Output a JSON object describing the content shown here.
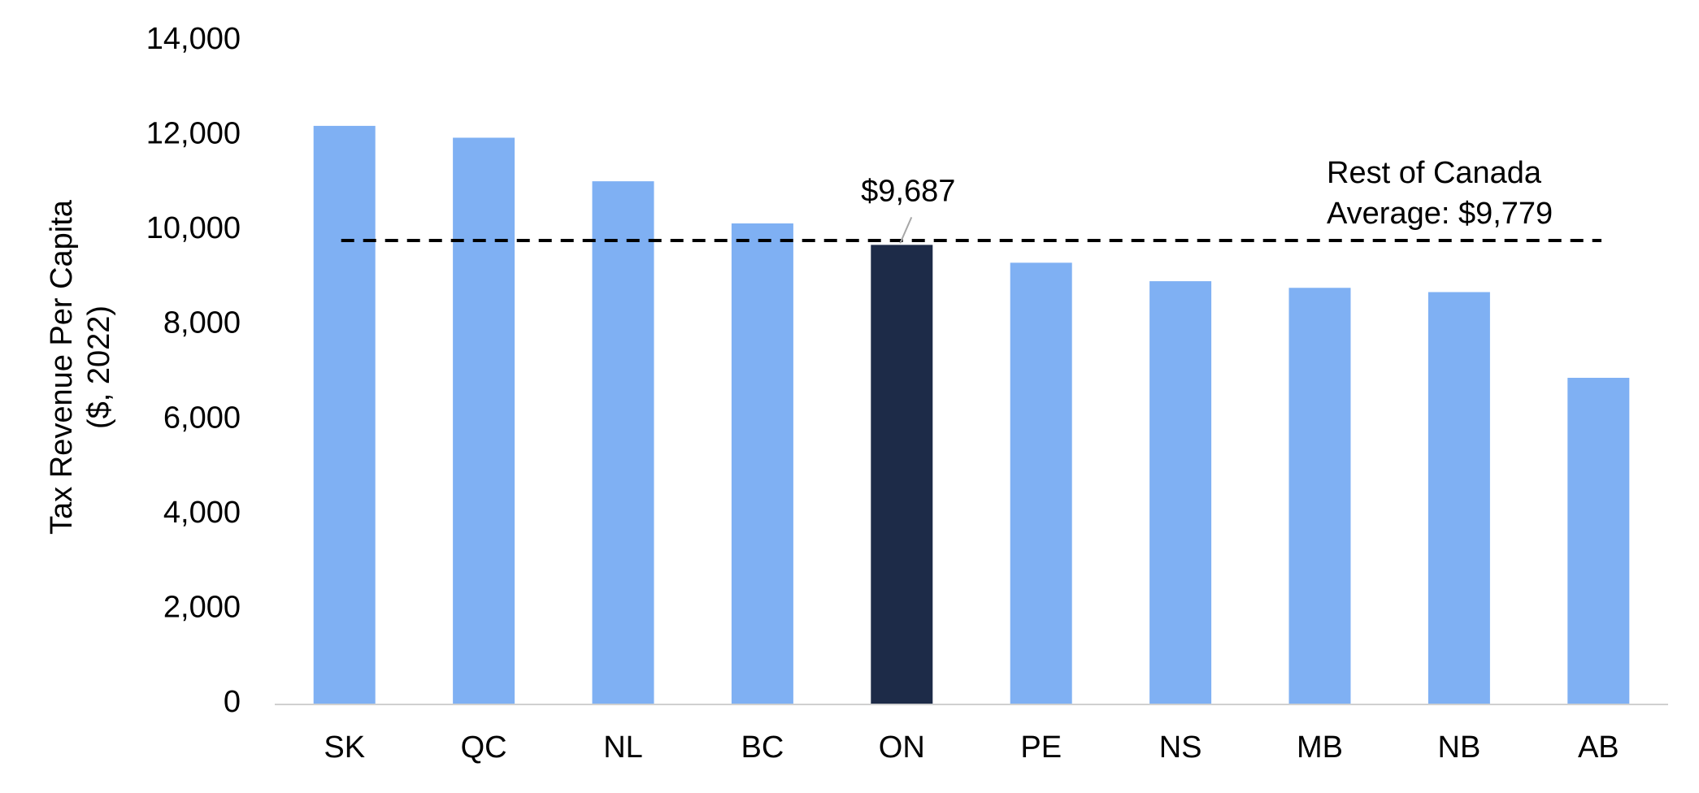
{
  "chart_data": {
    "type": "bar",
    "categories": [
      "SK",
      "QC",
      "NL",
      "BC",
      "ON",
      "PE",
      "NS",
      "MB",
      "NB",
      "AB"
    ],
    "values": [
      12200,
      11950,
      11030,
      10140,
      9687,
      9310,
      8920,
      8780,
      8690,
      6880
    ],
    "highlight_category": "ON",
    "colors": {
      "bar": "#7fb0f3",
      "highlight": "#1d2b48",
      "average_line": "#000000",
      "axis": "#d0d0d0"
    },
    "ylabel_lines": [
      "Tax Revenue Per Capita",
      "($, 2022)"
    ],
    "ylim": [
      0,
      14000
    ],
    "yticks": [
      0,
      2000,
      4000,
      6000,
      8000,
      10000,
      12000,
      14000
    ],
    "ytick_labels": [
      "0",
      "2,000",
      "4,000",
      "6,000",
      "8,000",
      "10,000",
      "12,000",
      "14,000"
    ],
    "grid": false,
    "legend": "none",
    "average_line": {
      "value": 9779,
      "label_lines": [
        "Rest of Canada",
        "Average: $9,779"
      ]
    },
    "data_labels": [
      {
        "category": "ON",
        "text": "$9,687"
      }
    ]
  }
}
